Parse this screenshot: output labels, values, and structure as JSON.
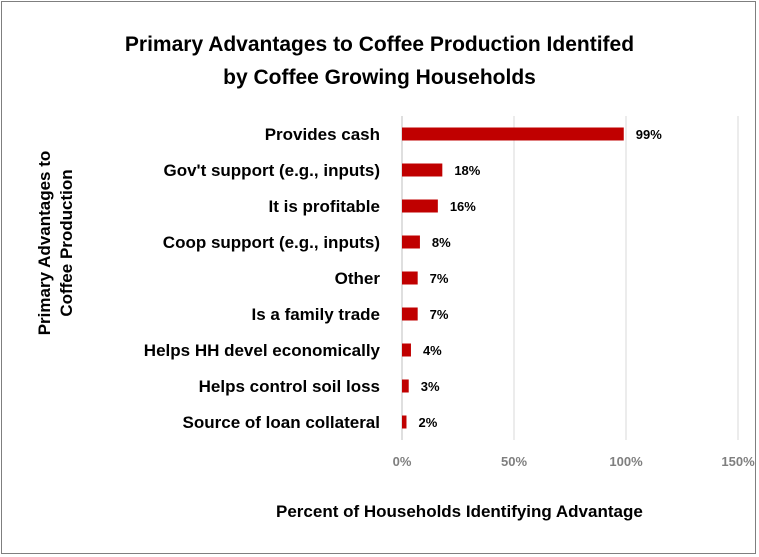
{
  "chart_data": {
    "type": "bar",
    "orientation": "horizontal",
    "title_line1": "Primary Advantages to Coffee Production Identifed",
    "title_line2": "by Coffee Growing Households",
    "ylabel_line1": "Primary Advantages to",
    "ylabel_line2": "Coffee Production",
    "xlabel": "Percent of Households Identifying Advantage",
    "categories": [
      "Provides cash",
      "Gov't support (e.g., inputs)",
      "It is profitable",
      "Coop support (e.g., inputs)",
      "Other",
      "Is a family trade",
      "Helps HH devel economically",
      "Helps control soil loss",
      "Source of loan collateral"
    ],
    "values": [
      99,
      18,
      16,
      8,
      7,
      7,
      4,
      3,
      2
    ],
    "value_labels": [
      "99%",
      "18%",
      "16%",
      "8%",
      "7%",
      "7%",
      "4%",
      "3%",
      "2%"
    ],
    "xlim": [
      0,
      150
    ],
    "xticks": [
      0,
      50,
      100,
      150
    ],
    "xtick_labels": [
      "0%",
      "50%",
      "100%",
      "150%"
    ],
    "grid": true,
    "bar_color": "#c00000",
    "grid_color": "#d9d9d9"
  }
}
